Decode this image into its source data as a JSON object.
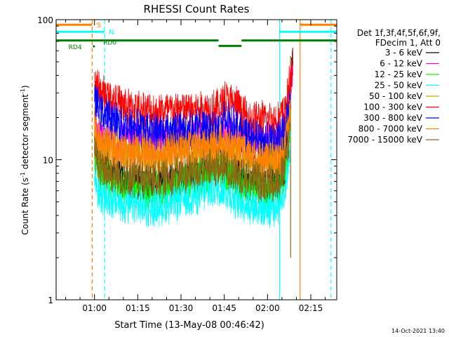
{
  "chart_data": {
    "type": "line",
    "title": "RHESSI Count Rates",
    "xlabel": "Start Time (13-May-08 00:46:42)",
    "ylabel_main": "Count Rate (s",
    "ylabel_sup1": "-1",
    "ylabel_mid": " detector segment",
    "ylabel_sup2": "-1",
    "ylabel_end": ")",
    "yscale": "log",
    "xlim_minutes": [
      46.7,
      144.0
    ],
    "ylim": [
      1,
      100
    ],
    "x_ticks": [
      {
        "m": 60,
        "label": "01:00"
      },
      {
        "m": 75,
        "label": "01:15"
      },
      {
        "m": 90,
        "label": "01:30"
      },
      {
        "m": 105,
        "label": "01:45"
      },
      {
        "m": 120,
        "label": "02:00"
      },
      {
        "m": 135,
        "label": "02:15"
      }
    ],
    "y_ticks": [
      {
        "v": 1,
        "label": "1"
      },
      {
        "v": 10,
        "label": "10"
      },
      {
        "v": 100,
        "label": "100"
      }
    ],
    "legend_header": [
      "Det 1f,3f,4f,5f,6f,9f,",
      "FDecim 1, Att 0"
    ],
    "series": [
      {
        "name": "3 - 6 keV",
        "color": "#000000",
        "points": [
          [
            60,
            12.5
          ],
          [
            62,
            9
          ],
          [
            70,
            7.2
          ],
          [
            80,
            6.8
          ],
          [
            90,
            7.5
          ],
          [
            100,
            8.5
          ],
          [
            104,
            9.2
          ],
          [
            108,
            8.0
          ],
          [
            114,
            7.0
          ],
          [
            120,
            6.8
          ],
          [
            124,
            7.0
          ],
          [
            126,
            9.0
          ],
          [
            127,
            15
          ],
          [
            128,
            30
          ],
          [
            128.8,
            55
          ]
        ]
      },
      {
        "name": "6 - 12 keV",
        "color": "#ff00ff",
        "points": [
          [
            60,
            17
          ],
          [
            62,
            14.5
          ],
          [
            70,
            13.5
          ],
          [
            80,
            13.2
          ],
          [
            90,
            14.0
          ],
          [
            100,
            14.8
          ],
          [
            104,
            15.5
          ],
          [
            108,
            15.0
          ],
          [
            114,
            13.5
          ],
          [
            120,
            12.8
          ],
          [
            124,
            13.5
          ],
          [
            126,
            16
          ],
          [
            127,
            22
          ],
          [
            128,
            35
          ],
          [
            128.8,
            48
          ]
        ]
      },
      {
        "name": "12 - 25 keV",
        "color": "#00ff00",
        "points": [
          [
            60,
            10
          ],
          [
            62,
            7.5
          ],
          [
            70,
            6.3
          ],
          [
            80,
            6.0
          ],
          [
            90,
            6.8
          ],
          [
            100,
            7.8
          ],
          [
            104,
            8.3
          ],
          [
            108,
            7.2
          ],
          [
            114,
            6.2
          ],
          [
            120,
            5.8
          ],
          [
            124,
            6.2
          ],
          [
            126,
            8.0
          ],
          [
            127,
            12
          ],
          [
            128,
            20
          ]
        ]
      },
      {
        "name": "25 - 50 keV",
        "color": "#00ffff",
        "points": [
          [
            60,
            7.5
          ],
          [
            62,
            5.5
          ],
          [
            70,
            4.8
          ],
          [
            80,
            4.5
          ],
          [
            90,
            5.2
          ],
          [
            100,
            6.0
          ],
          [
            104,
            6.4
          ],
          [
            108,
            5.4
          ],
          [
            114,
            4.8
          ],
          [
            120,
            4.5
          ],
          [
            124,
            4.8
          ],
          [
            126,
            6.0
          ],
          [
            127,
            9.0
          ],
          [
            128,
            14
          ]
        ]
      },
      {
        "name": "50 - 100 keV",
        "color": "#d4a000",
        "points": [
          [
            60,
            15
          ],
          [
            62,
            12
          ],
          [
            70,
            11
          ],
          [
            80,
            10.6
          ],
          [
            90,
            11.2
          ],
          [
            100,
            12.2
          ],
          [
            104,
            12.8
          ],
          [
            108,
            11.6
          ],
          [
            114,
            10.6
          ],
          [
            120,
            10.0
          ],
          [
            124,
            10.6
          ],
          [
            126,
            13
          ],
          [
            127,
            18
          ],
          [
            128,
            28
          ]
        ]
      },
      {
        "name": "100 - 300 keV",
        "color": "#ff0000",
        "points": [
          [
            60,
            38
          ],
          [
            62,
            30
          ],
          [
            70,
            24
          ],
          [
            80,
            22
          ],
          [
            90,
            22.5
          ],
          [
            100,
            23
          ],
          [
            104,
            24
          ],
          [
            105,
            27
          ],
          [
            108,
            25
          ],
          [
            110,
            24
          ],
          [
            111,
            21
          ],
          [
            114,
            19.5
          ],
          [
            120,
            19
          ],
          [
            124,
            19.5
          ],
          [
            126,
            22
          ],
          [
            127,
            28
          ],
          [
            128,
            38
          ],
          [
            128.8,
            48
          ]
        ]
      },
      {
        "name": "300 - 800 keV",
        "color": "#0000ff",
        "points": [
          [
            60,
            27
          ],
          [
            62,
            22
          ],
          [
            70,
            17.5
          ],
          [
            80,
            16
          ],
          [
            90,
            16.2
          ],
          [
            100,
            16.5
          ],
          [
            104,
            17.2
          ],
          [
            105,
            19
          ],
          [
            108,
            18
          ],
          [
            110,
            17.2
          ],
          [
            111,
            15.5
          ],
          [
            114,
            14.2
          ],
          [
            120,
            13.5
          ],
          [
            124,
            13.8
          ],
          [
            126,
            16
          ],
          [
            127,
            21
          ],
          [
            128,
            30
          ]
        ]
      },
      {
        "name": "800 - 7000 keV",
        "color": "#ff8000",
        "points": [
          [
            60,
            18
          ],
          [
            62,
            13.5
          ],
          [
            70,
            11.5
          ],
          [
            80,
            11
          ],
          [
            90,
            11.8
          ],
          [
            100,
            12.5
          ],
          [
            104,
            13
          ],
          [
            108,
            12
          ],
          [
            114,
            10.5
          ],
          [
            120,
            9.8
          ],
          [
            124,
            10.2
          ],
          [
            126,
            12
          ],
          [
            127,
            16
          ],
          [
            128,
            22
          ]
        ]
      },
      {
        "name": "7000 - 15000 keV",
        "color": "#8b6914",
        "points": [
          [
            60,
            11.5
          ],
          [
            62,
            8.5
          ],
          [
            70,
            7.5
          ],
          [
            80,
            7.2
          ],
          [
            90,
            7.8
          ],
          [
            100,
            8.6
          ],
          [
            104,
            9.0
          ],
          [
            108,
            8.2
          ],
          [
            114,
            7.4
          ],
          [
            120,
            7.0
          ],
          [
            124,
            7.2
          ],
          [
            126,
            9
          ],
          [
            127,
            12
          ],
          [
            128,
            18
          ]
        ]
      }
    ],
    "markers": {
      "vlines": [
        {
          "m": 46.7,
          "color": "#00ffff",
          "style": "solid"
        },
        {
          "m": 59.2,
          "color": "#ff8000",
          "style": "dashed"
        },
        {
          "m": 63.5,
          "color": "#00ffff",
          "style": "dashed"
        },
        {
          "m": 124.2,
          "color": "#00ffff",
          "style": "solid"
        },
        {
          "m": 131.3,
          "color": "#ff8000",
          "style": "solid"
        },
        {
          "m": 142.0,
          "color": "#00ffff",
          "style": "dashed"
        },
        {
          "m": 128.0,
          "color": "#8b6914",
          "style": "solid"
        }
      ],
      "flag_bars": [
        {
          "label": "S",
          "color": "#ff8000",
          "value": 92,
          "segments": [
            [
              46.7,
              59.2
            ],
            [
              131.3,
              144.0
            ]
          ]
        },
        {
          "label": "N",
          "color": "#00ffff",
          "value": 82,
          "segments": [
            [
              46.7,
              63.5
            ],
            [
              124.2,
              144.0
            ]
          ]
        },
        {
          "label": "",
          "color": "#008000",
          "value": 71,
          "segments": [
            [
              46.7,
              103.0
            ],
            [
              111.0,
              144.0
            ]
          ]
        },
        {
          "label": "",
          "color": "#008000",
          "value": 65,
          "segments": [
            [
              103.0,
              111.0
            ]
          ]
        }
      ],
      "labels": [
        {
          "text": "RD4",
          "color": "#008000"
        },
        {
          "text": "RD0",
          "color": "#008000"
        }
      ]
    },
    "footer_timestamp": "14-Oct-2021 13:40"
  }
}
